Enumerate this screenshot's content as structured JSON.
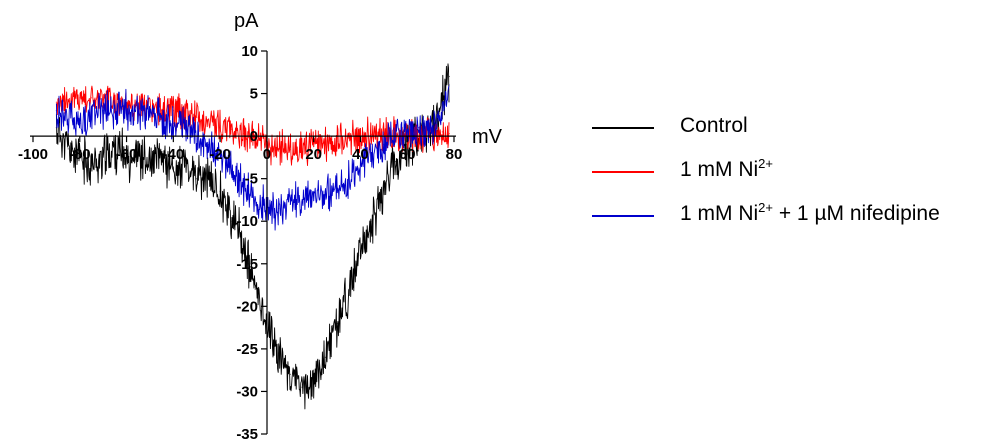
{
  "chart_data": {
    "type": "line",
    "title": "",
    "xlabel": "mV",
    "ylabel": "pA",
    "xlim": [
      -100,
      80
    ],
    "ylim": [
      -35,
      10
    ],
    "xticks": [
      -100,
      -80,
      -60,
      -40,
      -20,
      0,
      20,
      40,
      60,
      80
    ],
    "xtick_labels": [
      "-100",
      "-80",
      "-60",
      "-40",
      "-20",
      "0",
      "20",
      "40",
      "60",
      "80"
    ],
    "yticks": [
      10,
      5,
      0,
      -5,
      -10,
      -15,
      -20,
      -25,
      -30,
      -35
    ],
    "ytick_labels": [
      "10",
      "5",
      "0",
      "-5",
      "-10",
      "-15",
      "-20",
      "-25",
      "-30",
      "-35"
    ],
    "grid": false,
    "legend_position": "right",
    "series": [
      {
        "name": "Control",
        "name_parts": [
          "Control"
        ],
        "sup_parts": [],
        "color": "#000000",
        "x": [
          -90,
          -85,
          -80,
          -75,
          -70,
          -65,
          -60,
          -55,
          -50,
          -45,
          -40,
          -35,
          -30,
          -25,
          -20,
          -17,
          -15,
          -12,
          -10,
          -8,
          -5,
          -2,
          0,
          5,
          10,
          15,
          20,
          25,
          30,
          35,
          40,
          45,
          50,
          55,
          60,
          65,
          70,
          72,
          75,
          78
        ],
        "y": [
          1,
          -1.5,
          -2.5,
          -3.5,
          -2.5,
          -1.5,
          -2.5,
          -2,
          -3.5,
          -2.5,
          -4,
          -3.5,
          -5,
          -5,
          -6.5,
          -8,
          -10,
          -11,
          -13,
          -15,
          -18,
          -20,
          -22,
          -25.5,
          -28,
          -29.5,
          -29,
          -26,
          -22,
          -18,
          -14,
          -10,
          -6,
          -3,
          -1,
          0,
          0.5,
          1,
          4,
          7
        ]
      },
      {
        "name": "1 mM Ni2+",
        "name_parts": [
          "1 mM Ni"
        ],
        "sup_parts": [
          "2+"
        ],
        "color": "#ff0000",
        "x": [
          -90,
          -85,
          -80,
          -75,
          -70,
          -65,
          -60,
          -55,
          -50,
          -45,
          -40,
          -35,
          -30,
          -25,
          -20,
          -15,
          -10,
          -5,
          0,
          5,
          10,
          15,
          20,
          25,
          30,
          35,
          40,
          45,
          50,
          55,
          60,
          65,
          70,
          75,
          78
        ],
        "y": [
          4,
          4.3,
          4.5,
          4.5,
          4.3,
          4,
          3.8,
          3.5,
          3.2,
          3,
          3,
          2.5,
          2.2,
          1.8,
          1.2,
          0.8,
          0.3,
          -0.3,
          -1,
          -1.5,
          -1.6,
          -1.5,
          -1.2,
          -1,
          -0.6,
          -0.3,
          0,
          0.2,
          0.2,
          0.3,
          0,
          0,
          0.5,
          0.5,
          0.3
        ]
      },
      {
        "name": "1 mM Ni2+ + 1 µM nifedipine",
        "name_parts": [
          "1 mM Ni",
          " + 1 µM nifedipine"
        ],
        "sup_parts": [
          "2+"
        ],
        "color": "#0000cc",
        "x": [
          -90,
          -85,
          -80,
          -75,
          -70,
          -65,
          -60,
          -55,
          -50,
          -45,
          -40,
          -35,
          -30,
          -25,
          -20,
          -15,
          -10,
          -5,
          0,
          5,
          10,
          15,
          20,
          25,
          30,
          35,
          40,
          45,
          50,
          55,
          60,
          65,
          70,
          72,
          75,
          78
        ],
        "y": [
          3,
          2,
          1.5,
          2.5,
          3,
          3.2,
          3,
          2.8,
          2.5,
          2.2,
          1.5,
          1,
          0,
          -1,
          -2.5,
          -4,
          -6,
          -7.5,
          -8.5,
          -8.5,
          -8,
          -7.5,
          -7,
          -6.5,
          -6,
          -5,
          -3.5,
          -2,
          -1,
          0,
          0.5,
          1,
          1,
          1.5,
          3,
          6
        ]
      }
    ]
  }
}
